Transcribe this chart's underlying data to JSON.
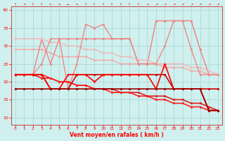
{
  "title": "",
  "xlabel": "Vent moyen/en rafales ( km/h )",
  "ylabel": "",
  "xlim": [
    -0.5,
    23.5
  ],
  "ylim": [
    8,
    41
  ],
  "yticks": [
    10,
    15,
    20,
    25,
    30,
    35,
    40
  ],
  "xticks": [
    0,
    1,
    2,
    3,
    4,
    5,
    6,
    7,
    8,
    9,
    10,
    11,
    12,
    13,
    14,
    15,
    16,
    17,
    18,
    19,
    20,
    21,
    22,
    23
  ],
  "bg_color": "#cff0ee",
  "grid_color": "#b0ddd8",
  "series": [
    {
      "x": [
        0,
        1,
        2,
        3,
        4,
        5,
        6,
        7,
        8,
        9,
        10,
        11,
        12,
        13,
        14,
        15,
        16,
        17,
        18,
        19,
        20,
        21,
        22,
        23
      ],
      "y": [
        29,
        29,
        29,
        29,
        28,
        27,
        27,
        27,
        27,
        26,
        26,
        26,
        25,
        25,
        25,
        25,
        25,
        24,
        24,
        24,
        23,
        23,
        22,
        22
      ],
      "color": "#f0aaaa",
      "lw": 1.0,
      "marker": "D",
      "ms": 1.5
    },
    {
      "x": [
        0,
        1,
        2,
        3,
        4,
        5,
        6,
        7,
        8,
        9,
        10,
        11,
        12,
        13,
        14,
        15,
        16,
        17,
        18,
        19,
        20,
        21,
        22,
        23
      ],
      "y": [
        22,
        22,
        22,
        32,
        25,
        32,
        32,
        32,
        32,
        32,
        32,
        32,
        32,
        32,
        25,
        25,
        37,
        37,
        37,
        37,
        37,
        29,
        22,
        22
      ],
      "color": "#f08080",
      "lw": 1.0,
      "marker": "D",
      "ms": 1.5
    },
    {
      "x": [
        0,
        1,
        2,
        3,
        4,
        5,
        6,
        7,
        8,
        9,
        10,
        11,
        12,
        13,
        14,
        15,
        16,
        17,
        18,
        19,
        20,
        21,
        22,
        23
      ],
      "y": [
        32,
        32,
        32,
        32,
        31,
        31,
        30,
        30,
        29,
        29,
        28,
        28,
        27,
        27,
        26,
        26,
        25,
        25,
        25,
        25,
        24,
        24,
        23,
        22
      ],
      "color": "#f0b8b8",
      "lw": 1.0,
      "marker": "D",
      "ms": 1.5
    },
    {
      "x": [
        0,
        1,
        2,
        3,
        4,
        5,
        6,
        7,
        8,
        9,
        10,
        11,
        12,
        13,
        14,
        15,
        16,
        17,
        18,
        19,
        20,
        21,
        22,
        23
      ],
      "y": [
        22,
        22,
        22,
        25,
        32,
        32,
        18,
        25,
        36,
        35,
        36,
        32,
        32,
        32,
        25,
        25,
        25,
        30,
        37,
        37,
        29,
        22,
        22,
        22
      ],
      "color": "#ee8888",
      "lw": 1.0,
      "marker": "D",
      "ms": 1.5
    },
    {
      "x": [
        0,
        1,
        2,
        3,
        4,
        5,
        6,
        7,
        8,
        9,
        10,
        11,
        12,
        13,
        14,
        15,
        16,
        17,
        18,
        19,
        20,
        21,
        22,
        23
      ],
      "y": [
        22,
        22,
        22,
        21,
        21,
        20,
        20,
        19,
        19,
        18,
        18,
        18,
        17,
        17,
        17,
        16,
        16,
        16,
        15,
        15,
        14,
        14,
        13,
        12
      ],
      "color": "#dd2222",
      "lw": 1.2,
      "marker": "s",
      "ms": 1.5
    },
    {
      "x": [
        0,
        1,
        2,
        3,
        4,
        5,
        6,
        7,
        8,
        9,
        10,
        11,
        12,
        13,
        14,
        15,
        16,
        17,
        18,
        19,
        20,
        21,
        22,
        23
      ],
      "y": [
        22,
        22,
        22,
        22,
        21,
        20,
        20,
        19,
        19,
        18,
        18,
        17,
        17,
        17,
        16,
        16,
        15,
        15,
        14,
        14,
        13,
        13,
        12,
        12
      ],
      "color": "#ff2020",
      "lw": 1.2,
      "marker": "s",
      "ms": 1.5
    },
    {
      "x": [
        0,
        1,
        2,
        3,
        4,
        5,
        6,
        7,
        8,
        9,
        10,
        11,
        12,
        13,
        14,
        15,
        16,
        17,
        18,
        19,
        20,
        21,
        22,
        23
      ],
      "y": [
        22,
        22,
        22,
        22,
        18,
        18,
        18,
        22,
        22,
        22,
        22,
        22,
        22,
        22,
        22,
        22,
        22,
        22,
        18,
        18,
        18,
        18,
        18,
        18
      ],
      "color": "#cc0000",
      "lw": 1.2,
      "marker": "s",
      "ms": 1.5
    },
    {
      "x": [
        0,
        1,
        2,
        3,
        4,
        5,
        6,
        7,
        8,
        9,
        10,
        11,
        12,
        13,
        14,
        15,
        16,
        17,
        18,
        19,
        20,
        21,
        22,
        23
      ],
      "y": [
        22,
        22,
        22,
        22,
        18,
        18,
        22,
        22,
        22,
        20,
        22,
        22,
        22,
        22,
        22,
        22,
        18,
        25,
        18,
        18,
        18,
        18,
        12,
        12
      ],
      "color": "#ff0000",
      "lw": 1.2,
      "marker": "+",
      "ms": 3
    },
    {
      "x": [
        0,
        1,
        2,
        3,
        4,
        5,
        6,
        7,
        8,
        9,
        10,
        11,
        12,
        13,
        14,
        15,
        16,
        17,
        18,
        19,
        20,
        21,
        22,
        23
      ],
      "y": [
        18,
        18,
        18,
        18,
        18,
        18,
        18,
        18,
        18,
        18,
        18,
        18,
        18,
        18,
        18,
        18,
        18,
        18,
        18,
        18,
        18,
        18,
        12,
        12
      ],
      "color": "#990000",
      "lw": 1.2,
      "marker": "s",
      "ms": 1.5
    }
  ]
}
